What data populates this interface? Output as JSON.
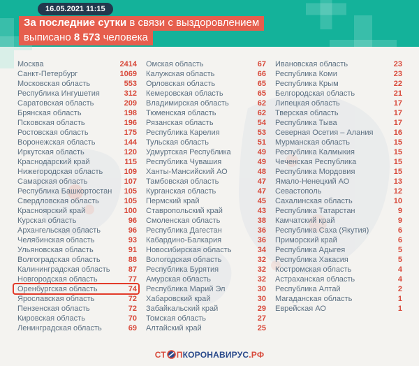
{
  "header": {
    "timestamp": "16.05.2021 11:15",
    "line1_bold": "За последние сутки",
    "line1_rest": " в связи с выздоровлением",
    "line2_prefix": "выписано ",
    "line2_number": "8 573",
    "line2_suffix": " человека"
  },
  "footer": {
    "logo_part1": "СТ",
    "logo_part2": "П",
    "logo_part3": "КОРОНАВИРУС",
    "logo_part4": ".РФ"
  },
  "colors": {
    "teal_band": "#14b29a",
    "banner_highlight": "#e65e4d",
    "timestamp_pill": "#22384d",
    "region_name": "#5d7183",
    "region_value": "#d8493a",
    "highlight_box": "#e23b2a",
    "logo_blue": "#2a4a8b"
  },
  "chart_data": {
    "type": "table",
    "title": "За последние сутки в связи с выздоровлением выписано 8 573 человека",
    "timestamp": "16.05.2021 11:15",
    "highlighted_region": "Оренбургская область",
    "columns": [
      {
        "rows": [
          {
            "name": "Москва",
            "value": "2414"
          },
          {
            "name": "Санкт-Петербург",
            "value": "1069"
          },
          {
            "name": "Московская область",
            "value": "553"
          },
          {
            "name": "Республика Ингушетия",
            "value": "312"
          },
          {
            "name": "Саратовская область",
            "value": "209"
          },
          {
            "name": "Брянская область",
            "value": "198"
          },
          {
            "name": "Псковская область",
            "value": "196"
          },
          {
            "name": "Ростовская область",
            "value": "175"
          },
          {
            "name": "Воронежская область",
            "value": "144"
          },
          {
            "name": "Иркутская область",
            "value": "120"
          },
          {
            "name": "Краснодарский край",
            "value": "115"
          },
          {
            "name": "Нижегородская область",
            "value": "109"
          },
          {
            "name": "Самарская область",
            "value": "107"
          },
          {
            "name": "Республика Башкортостан",
            "value": "105"
          },
          {
            "name": "Свердловская область",
            "value": "105"
          },
          {
            "name": "Красноярский край",
            "value": "100"
          },
          {
            "name": "Курская область",
            "value": "96"
          },
          {
            "name": "Архангельская область",
            "value": "96"
          },
          {
            "name": "Челябинская область",
            "value": "93"
          },
          {
            "name": "Ульяновская область",
            "value": "91"
          },
          {
            "name": "Волгоградская область",
            "value": "88"
          },
          {
            "name": "Калининградская область",
            "value": "87"
          },
          {
            "name": "Новгородская область",
            "value": "77"
          },
          {
            "name": "Оренбургская область",
            "value": "74",
            "highlight": true
          },
          {
            "name": "Ярославская область",
            "value": "72"
          },
          {
            "name": "Пензенская область",
            "value": "72"
          },
          {
            "name": "Кировская область",
            "value": "70"
          },
          {
            "name": "Ленинградская область",
            "value": "69"
          }
        ]
      },
      {
        "rows": [
          {
            "name": "Омская область",
            "value": "67"
          },
          {
            "name": "Калужская область",
            "value": "66"
          },
          {
            "name": "Орловская область",
            "value": "65"
          },
          {
            "name": "Кемеровская область",
            "value": "65"
          },
          {
            "name": "Владимирская область",
            "value": "62"
          },
          {
            "name": "Тюменская область",
            "value": "62"
          },
          {
            "name": "Рязанская область",
            "value": "54"
          },
          {
            "name": "Республика Карелия",
            "value": "53"
          },
          {
            "name": "Тульская область",
            "value": "51"
          },
          {
            "name": "Удмуртская Республика",
            "value": "49"
          },
          {
            "name": "Республика Чувашия",
            "value": "49"
          },
          {
            "name": "Ханты-Мансийский АО",
            "value": "48"
          },
          {
            "name": "Тамбовская область",
            "value": "47"
          },
          {
            "name": "Курганская область",
            "value": "47"
          },
          {
            "name": "Пермский край",
            "value": "45"
          },
          {
            "name": "Ставропольский край",
            "value": "43"
          },
          {
            "name": "Смоленская область",
            "value": "38"
          },
          {
            "name": "Республика Дагестан",
            "value": "36"
          },
          {
            "name": "Кабардино-Балкария",
            "value": "36"
          },
          {
            "name": "Новосибирская область",
            "value": "34"
          },
          {
            "name": "Вологодская область",
            "value": "32"
          },
          {
            "name": "Республика Бурятия",
            "value": "32"
          },
          {
            "name": "Амурская область",
            "value": "32"
          },
          {
            "name": "Республика Марий Эл",
            "value": "30"
          },
          {
            "name": "Хабаровский край",
            "value": "30"
          },
          {
            "name": "Забайкальский край",
            "value": "29"
          },
          {
            "name": "Томская область",
            "value": "27"
          },
          {
            "name": "Алтайский край",
            "value": "25"
          }
        ]
      },
      {
        "rows": [
          {
            "name": "Ивановская область",
            "value": "23"
          },
          {
            "name": "Республика Коми",
            "value": "23"
          },
          {
            "name": "Республика Крым",
            "value": "22"
          },
          {
            "name": "Белгородская область",
            "value": "21"
          },
          {
            "name": "Липецкая область",
            "value": "17"
          },
          {
            "name": "Тверская область",
            "value": "17"
          },
          {
            "name": "Республика Тыва",
            "value": "17"
          },
          {
            "name": "Северная Осетия – Алания",
            "value": "16"
          },
          {
            "name": "Мурманская область",
            "value": "15"
          },
          {
            "name": "Республика Калмыкия",
            "value": "15"
          },
          {
            "name": "Чеченская Республика",
            "value": "15"
          },
          {
            "name": "Республика Мордовия",
            "value": "15"
          },
          {
            "name": "Ямало-Ненецкий АО",
            "value": "13"
          },
          {
            "name": "Севастополь",
            "value": "12"
          },
          {
            "name": "Сахалинская область",
            "value": "10"
          },
          {
            "name": "Республика Татарстан",
            "value": "9"
          },
          {
            "name": "Камчатский край",
            "value": "9"
          },
          {
            "name": "Республика Саха (Якутия)",
            "value": "6"
          },
          {
            "name": "Приморский край",
            "value": "6"
          },
          {
            "name": "Республика Адыгея",
            "value": "5"
          },
          {
            "name": "Республика Хакасия",
            "value": "5"
          },
          {
            "name": "Костромская область",
            "value": "4"
          },
          {
            "name": "Астраханская область",
            "value": "4"
          },
          {
            "name": "Республика Алтай",
            "value": "2"
          },
          {
            "name": "Магаданская область",
            "value": "1"
          },
          {
            "name": "Еврейская АО",
            "value": "1"
          }
        ]
      }
    ]
  }
}
